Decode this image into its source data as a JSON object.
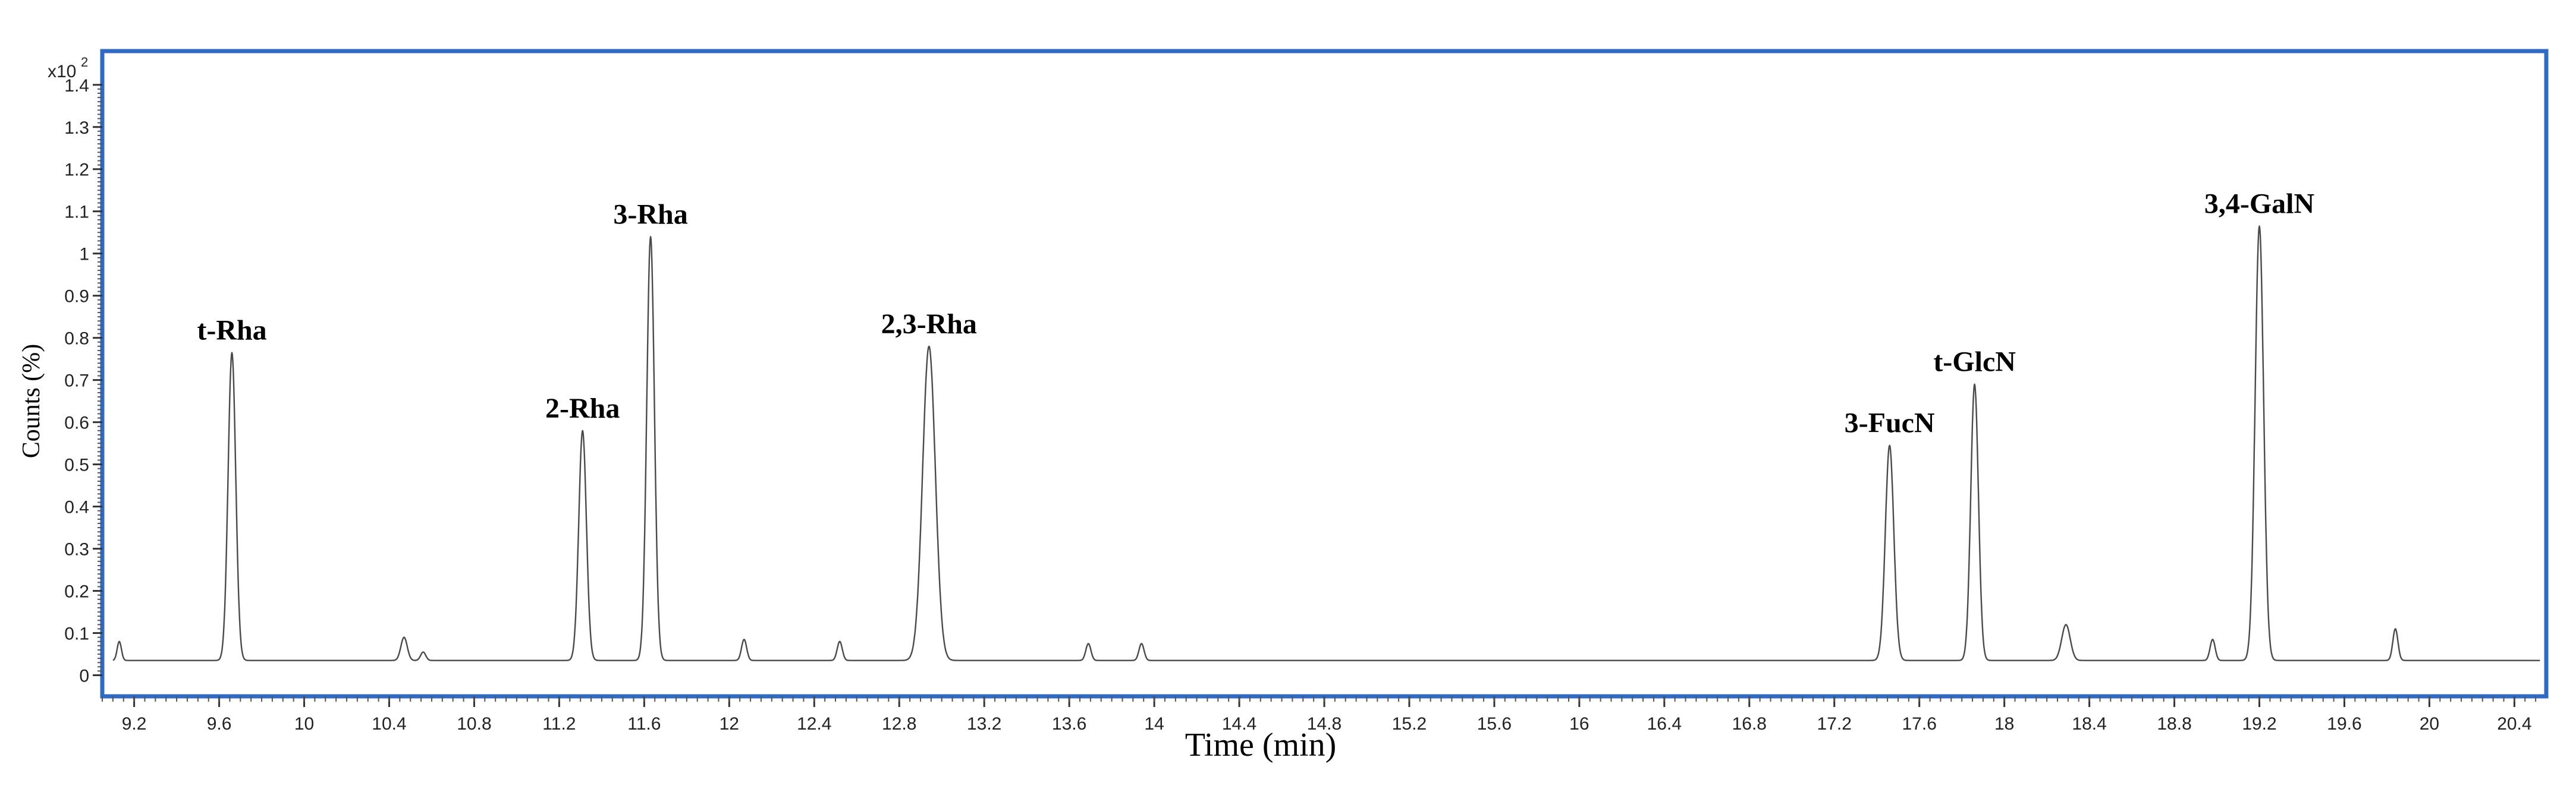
{
  "chart_data": {
    "type": "line",
    "title": "",
    "xlabel": "Time (min)",
    "ylabel": "Counts (%)",
    "y_multiplier": "x10",
    "y_multiplier_exponent": "2",
    "xlim": [
      9.05,
      20.55
    ],
    "ylim": [
      -0.05,
      1.48
    ],
    "x_ticks": [
      "9.2",
      "9.6",
      "10",
      "10.4",
      "10.8",
      "11.2",
      "11.6",
      "12",
      "12.4",
      "12.8",
      "13.2",
      "13.6",
      "14",
      "14.4",
      "14.8",
      "15.2",
      "15.6",
      "16",
      "16.4",
      "16.8",
      "17.2",
      "17.6",
      "18",
      "18.4",
      "18.8",
      "19.2",
      "19.6",
      "20",
      "20.4"
    ],
    "y_ticks": [
      "0",
      "0.1",
      "0.2",
      "0.3",
      "0.4",
      "0.5",
      "0.6",
      "0.7",
      "0.8",
      "0.9",
      "1",
      "1.1",
      "1.2",
      "1.3",
      "1.4"
    ],
    "grid": false,
    "frame_color": "#2f6bc2",
    "line_color": "#4a4a4a",
    "baseline": 0.035,
    "peaks": [
      {
        "label": "",
        "x": 9.13,
        "height": 0.045,
        "width": 0.01
      },
      {
        "label": "t-Rha",
        "x": 9.66,
        "height": 0.73,
        "width": 0.018
      },
      {
        "label": "",
        "x": 10.47,
        "height": 0.055,
        "width": 0.015
      },
      {
        "label": "",
        "x": 10.56,
        "height": 0.02,
        "width": 0.012
      },
      {
        "label": "2-Rha",
        "x": 11.31,
        "height": 0.545,
        "width": 0.018
      },
      {
        "label": "3-Rha",
        "x": 11.63,
        "height": 1.005,
        "width": 0.018
      },
      {
        "label": "",
        "x": 12.07,
        "height": 0.05,
        "width": 0.012
      },
      {
        "label": "",
        "x": 12.52,
        "height": 0.045,
        "width": 0.012
      },
      {
        "label": "2,3-Rha",
        "x": 12.94,
        "height": 0.745,
        "width": 0.03
      },
      {
        "label": "",
        "x": 13.69,
        "height": 0.04,
        "width": 0.012
      },
      {
        "label": "",
        "x": 13.94,
        "height": 0.04,
        "width": 0.012
      },
      {
        "label": "3-FucN",
        "x": 17.46,
        "height": 0.51,
        "width": 0.02
      },
      {
        "label": "t-GlcN",
        "x": 17.86,
        "height": 0.655,
        "width": 0.018
      },
      {
        "label": "",
        "x": 18.29,
        "height": 0.085,
        "width": 0.02
      },
      {
        "label": "",
        "x": 18.98,
        "height": 0.05,
        "width": 0.012
      },
      {
        "label": "3,4-GalN",
        "x": 19.2,
        "height": 1.03,
        "width": 0.02
      },
      {
        "label": "",
        "x": 19.84,
        "height": 0.075,
        "width": 0.012
      }
    ]
  }
}
